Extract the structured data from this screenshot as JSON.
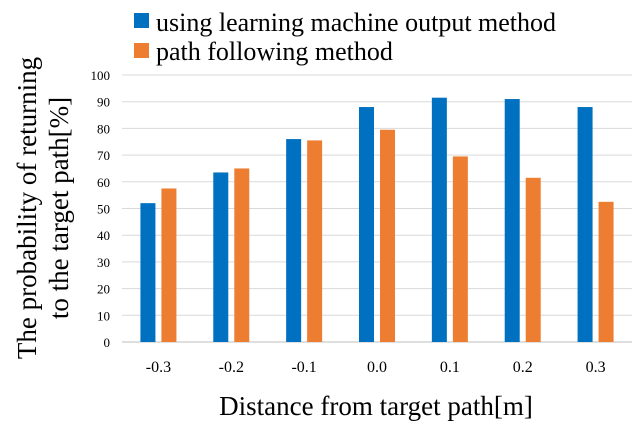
{
  "chart_data": {
    "type": "bar",
    "categories": [
      "-0.3",
      "-0.2",
      "-0.1",
      "0.0",
      "0.1",
      "0.2",
      "0.3"
    ],
    "series": [
      {
        "name": "using learning machine output method",
        "color": "#0070C0",
        "values": [
          52,
          63.5,
          76,
          88,
          91.5,
          91,
          88
        ]
      },
      {
        "name": "path following method",
        "color": "#ED7D31",
        "values": [
          57.5,
          65,
          75.5,
          79.5,
          69.5,
          61.5,
          52.5
        ]
      }
    ],
    "xlabel": "Distance from target path[m]",
    "ylabel_lines": [
      "The probability of returning",
      "to the target  path[%]"
    ],
    "ylim": [
      0,
      100
    ],
    "yticks": [
      0,
      10,
      20,
      30,
      40,
      50,
      60,
      70,
      80,
      90,
      100
    ],
    "grid": true,
    "legend_position": "top"
  }
}
